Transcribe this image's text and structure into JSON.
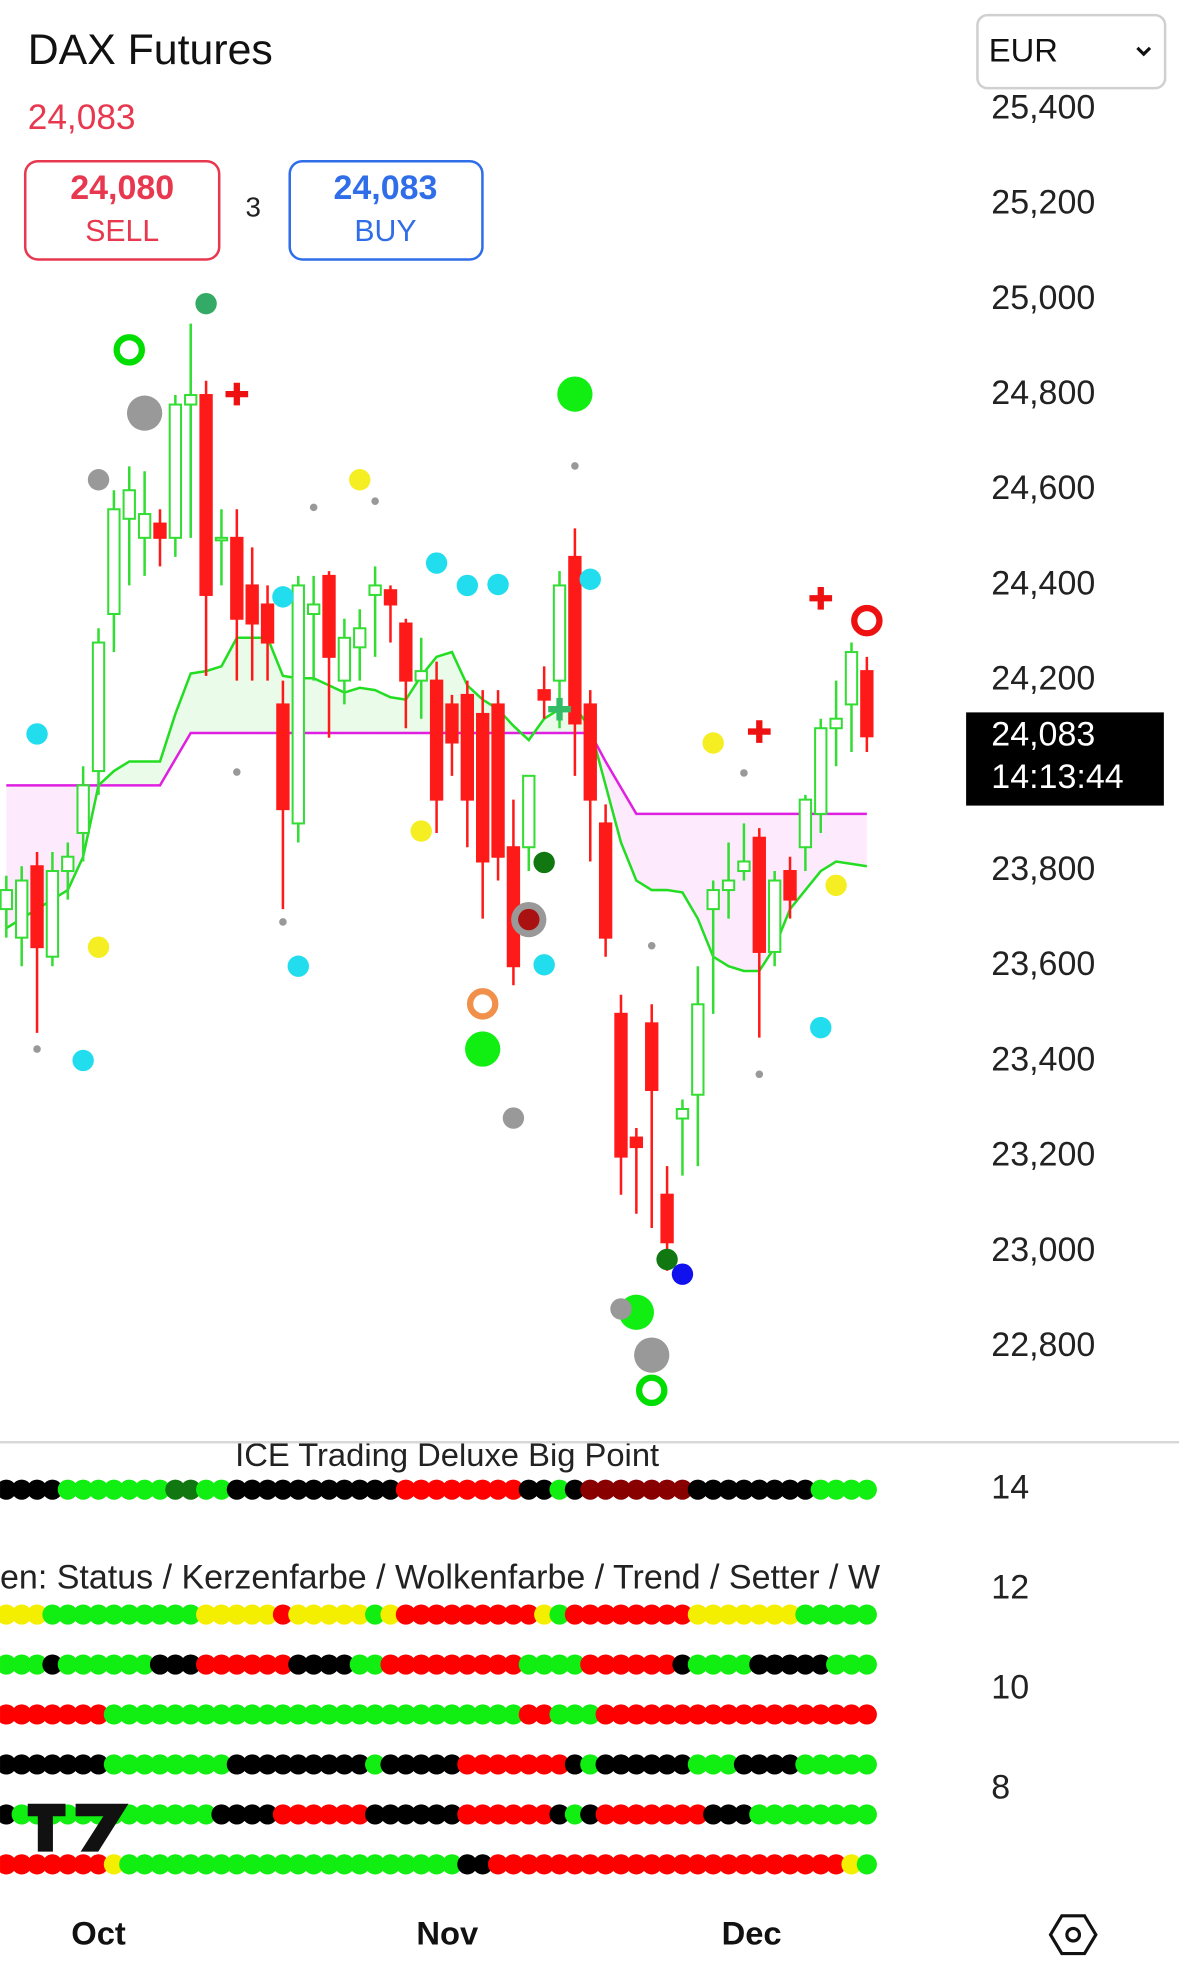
{
  "header": {
    "title": "DAX Futures",
    "price": "24,083",
    "sell_price": "24,080",
    "sell_label": "SELL",
    "spread": "3",
    "buy_price": "24,083",
    "buy_label": "BUY",
    "currency": "EUR"
  },
  "chart_data": [
    {
      "type": "candlestick",
      "up_color": "#33dd33",
      "down_color": "#ff1a1a",
      "ylim": [
        22600,
        25450
      ],
      "yticks": [
        {
          "value": 22800,
          "label": "22,800"
        },
        {
          "value": 23000,
          "label": "23,000"
        },
        {
          "value": 23200,
          "label": "23,200"
        },
        {
          "value": 23400,
          "label": "23,400"
        },
        {
          "value": 23600,
          "label": "23,600"
        },
        {
          "value": 23800,
          "label": "23,800"
        },
        {
          "value": 24000,
          "label": "24,000"
        },
        {
          "value": 24200,
          "label": "24,200"
        },
        {
          "value": 24400,
          "label": "24,400"
        },
        {
          "value": 24600,
          "label": "24,600"
        },
        {
          "value": 24800,
          "label": "24,800"
        },
        {
          "value": 25000,
          "label": "25,000"
        },
        {
          "value": 25200,
          "label": "25,200"
        },
        {
          "value": 25400,
          "label": "25,400"
        }
      ],
      "xticks": [
        {
          "value": 6,
          "label": "Oct"
        },
        {
          "value": 28.7,
          "label": "Nov"
        },
        {
          "value": 48.5,
          "label": "Dec"
        }
      ],
      "open": [
        23720,
        23660,
        23810,
        23620,
        23800,
        23880,
        24010,
        24340,
        24540,
        24500,
        24530,
        24500,
        24780,
        24800,
        24500,
        24500,
        24400,
        24360,
        24150,
        23900,
        24340,
        24420,
        24200,
        24270,
        24380,
        24390,
        24320,
        24200,
        24200,
        24150,
        24170,
        24130,
        24150,
        23850,
        23850,
        24180,
        24200,
        24460,
        24150,
        23900,
        23500,
        23240,
        23480,
        23120,
        23280,
        23330,
        23720,
        23760,
        23800,
        23870,
        23630,
        23800,
        23850,
        23920,
        24100,
        24150,
        24220
      ],
      "high": [
        23790,
        23810,
        23840,
        23840,
        23860,
        24020,
        24310,
        24600,
        24650,
        24640,
        24560,
        24800,
        24950,
        24830,
        24560,
        24560,
        24480,
        24400,
        24200,
        24420,
        24420,
        24430,
        24330,
        24350,
        24440,
        24400,
        24330,
        24290,
        24240,
        24170,
        24200,
        24180,
        24180,
        23950,
        24000,
        24230,
        24430,
        24520,
        24180,
        23940,
        23540,
        23260,
        23520,
        23180,
        23320,
        23600,
        23780,
        23860,
        23900,
        23890,
        23800,
        23830,
        23960,
        24120,
        24200,
        24280,
        24250
      ],
      "low": [
        23660,
        23600,
        23460,
        23600,
        23740,
        23820,
        23960,
        24260,
        24400,
        24420,
        24440,
        24460,
        24500,
        24210,
        24400,
        24200,
        24200,
        24200,
        23720,
        23860,
        24200,
        24080,
        24150,
        24200,
        24250,
        24280,
        24100,
        24120,
        23880,
        24000,
        23850,
        23700,
        23780,
        23560,
        23800,
        24120,
        24100,
        24000,
        23820,
        23620,
        23120,
        23080,
        23050,
        22960,
        23160,
        23180,
        23500,
        23700,
        23780,
        23450,
        23600,
        23700,
        23800,
        23880,
        24020,
        24050,
        24050
      ],
      "close": [
        23760,
        23780,
        23640,
        23800,
        23830,
        23980,
        24280,
        24560,
        24600,
        24550,
        24500,
        24780,
        24800,
        24380,
        24500,
        24330,
        24320,
        24280,
        23930,
        24400,
        24360,
        24250,
        24290,
        24310,
        24400,
        24360,
        24200,
        24220,
        23950,
        24070,
        23950,
        23820,
        23830,
        23600,
        24000,
        24160,
        24400,
        24110,
        23950,
        23660,
        23200,
        23220,
        23340,
        23020,
        23300,
        23520,
        23760,
        23780,
        23820,
        23630,
        23780,
        23740,
        23950,
        24100,
        24120,
        24260,
        24083
      ],
      "overlays": [
        {
          "color": "#e020e0",
          "fill": "#fdeafd",
          "values": [
            23980,
            23980,
            23980,
            23980,
            23980,
            23980,
            23980,
            23980,
            23980,
            23980,
            23980,
            24035,
            24090,
            24090,
            24090,
            24090,
            24090,
            24090,
            24090,
            24090,
            24090,
            24090,
            24090,
            24090,
            24090,
            24090,
            24090,
            24090,
            24090,
            24090,
            24090,
            24090,
            24090,
            24090,
            24090,
            24090,
            24090,
            24090,
            24090,
            24030,
            23975,
            23920,
            23920,
            23920,
            23920,
            23920,
            23920,
            23920,
            23920,
            23920,
            23920,
            23920,
            23920,
            23920,
            23920,
            23920,
            23920
          ]
        },
        {
          "color": "#22dd22",
          "fill": "#eafbea",
          "values": [
            23680,
            23700,
            23720,
            23740,
            23760,
            23830,
            23980,
            24010,
            24030,
            24030,
            24030,
            24130,
            24215,
            24220,
            24230,
            24290,
            24290,
            24290,
            24210,
            24205,
            24205,
            24190,
            24175,
            24185,
            24180,
            24165,
            24160,
            24210,
            24250,
            24260,
            24190,
            24160,
            24140,
            24105,
            24075,
            24120,
            24140,
            24145,
            24100,
            23980,
            23860,
            23780,
            23760,
            23760,
            23755,
            23700,
            23620,
            23600,
            23590,
            23590,
            23640,
            23720,
            23760,
            23800,
            23820,
            23815,
            23810
          ]
        }
      ],
      "last_price": {
        "value": 24083,
        "label": "24,083",
        "time": "14:13:44"
      },
      "markers": [
        {
          "index": 2,
          "value": 24088,
          "color": "#22ddee",
          "kind": "dot"
        },
        {
          "index": 2,
          "value": 23426,
          "color": "#999999",
          "kind": "small"
        },
        {
          "index": 5,
          "value": 23402,
          "color": "#22ddee",
          "kind": "dot"
        },
        {
          "index": 6,
          "value": 23640,
          "color": "#f4ee22",
          "kind": "dot"
        },
        {
          "index": 6,
          "value": 24622,
          "color": "#999999",
          "kind": "dot"
        },
        {
          "index": 8,
          "value": 24895,
          "color": "#00dd00",
          "kind": "ring"
        },
        {
          "index": 9,
          "value": 24762,
          "color": "#999999",
          "kind": "big"
        },
        {
          "index": 13,
          "value": 24992,
          "color": "#33aa66",
          "kind": "dot"
        },
        {
          "index": 15,
          "value": 24802,
          "color": "#ee1111",
          "kind": "cross"
        },
        {
          "index": 15,
          "value": 24008,
          "color": "#999999",
          "kind": "small"
        },
        {
          "index": 18,
          "value": 24376,
          "color": "#22ddee",
          "kind": "dot"
        },
        {
          "index": 18,
          "value": 23693,
          "color": "#999999",
          "kind": "small"
        },
        {
          "index": 19,
          "value": 23600,
          "color": "#22ddee",
          "kind": "dot"
        },
        {
          "index": 20,
          "value": 24564,
          "color": "#999999",
          "kind": "small"
        },
        {
          "index": 23,
          "value": 24622,
          "color": "#f4ee22",
          "kind": "dot"
        },
        {
          "index": 24,
          "value": 24577,
          "color": "#999999",
          "kind": "small"
        },
        {
          "index": 28,
          "value": 24447,
          "color": "#22ddee",
          "kind": "dot"
        },
        {
          "index": 27,
          "value": 23884,
          "color": "#f4ee22",
          "kind": "dot"
        },
        {
          "index": 30,
          "value": 24400,
          "color": "#22ddee",
          "kind": "dot"
        },
        {
          "index": 32,
          "value": 24402,
          "color": "#22ddee",
          "kind": "dot"
        },
        {
          "index": 31,
          "value": 23521,
          "color": "#f0904a",
          "kind": "ring"
        },
        {
          "index": 31,
          "value": 23426,
          "color": "#11ee11",
          "kind": "big"
        },
        {
          "index": 33,
          "value": 23281,
          "color": "#999999",
          "kind": "dot"
        },
        {
          "index": 34,
          "value": 23698,
          "color": "#999999",
          "kind": "big"
        },
        {
          "index": 34,
          "value": 23698,
          "color": "#aa1111",
          "kind": "dot"
        },
        {
          "index": 35,
          "value": 23818,
          "color": "#117711",
          "kind": "dot"
        },
        {
          "index": 35,
          "value": 23603,
          "color": "#22ddee",
          "kind": "dot"
        },
        {
          "index": 36,
          "value": 24140,
          "color": "#33bb66",
          "kind": "cross"
        },
        {
          "index": 37,
          "value": 24802,
          "color": "#11ee11",
          "kind": "big"
        },
        {
          "index": 37,
          "value": 24651,
          "color": "#999999",
          "kind": "small"
        },
        {
          "index": 38,
          "value": 24413,
          "color": "#22ddee",
          "kind": "dot"
        },
        {
          "index": 42,
          "value": 23643,
          "color": "#999999",
          "kind": "small"
        },
        {
          "index": 43,
          "value": 22984,
          "color": "#117711",
          "kind": "dot"
        },
        {
          "index": 44,
          "value": 22953,
          "color": "#1111ee",
          "kind": "dot"
        },
        {
          "index": 41,
          "value": 22873,
          "color": "#11ee11",
          "kind": "big"
        },
        {
          "index": 40,
          "value": 22880,
          "color": "#999999",
          "kind": "dot"
        },
        {
          "index": 42,
          "value": 22783,
          "color": "#999999",
          "kind": "big"
        },
        {
          "index": 42,
          "value": 22709,
          "color": "#00dd00",
          "kind": "ring"
        },
        {
          "index": 46,
          "value": 24069,
          "color": "#f4ee22",
          "kind": "dot"
        },
        {
          "index": 48,
          "value": 24006,
          "color": "#999999",
          "kind": "small"
        },
        {
          "index": 49,
          "value": 24093,
          "color": "#ee1111",
          "kind": "cross"
        },
        {
          "index": 49,
          "value": 23373,
          "color": "#999999",
          "kind": "small"
        },
        {
          "index": 53,
          "value": 24373,
          "color": "#ee1111",
          "kind": "cross"
        },
        {
          "index": 56,
          "value": 24326,
          "color": "#ee1111",
          "kind": "ring"
        },
        {
          "index": 54,
          "value": 23770,
          "color": "#f4ee22",
          "kind": "dot"
        },
        {
          "index": 53,
          "value": 23471,
          "color": "#22ddee",
          "kind": "dot"
        }
      ]
    },
    {
      "type": "dot-rows",
      "title": "ICE Trading Deluxe Big Point",
      "legend_text": "en: Status / Kerzenfarbe / Wolkenfarbe / Trend / Setter / W",
      "ylim": [
        6,
        15
      ],
      "yticks": [
        14,
        12,
        10,
        8
      ],
      "palette": {
        "K": "#000000",
        "G": "#11ee11",
        "Y": "#f4ee00",
        "R": "#ff0000",
        "D": "#880000",
        "E": "#117711"
      },
      "rows": [
        {
          "value": 14,
          "colors": "KKKKGGGGGGGEEGGKKKKKKKKKKKRRRRRRRRKKGKDDDDDDDKKKKKKKKGGGG"
        },
        {
          "value": 11.5,
          "colors": "YYYGGGGGGGGGGYYYYYRYYYYYGYRRRRRRRRRYGRRRRRRRRYYYYYYYGGGGG"
        },
        {
          "value": 10.5,
          "colors": "GGGKGGGGGGKKKRRRRRRKKKKGGRRRRRRRRRGGGGRRRRRRKGGGGKKKKKGGG"
        },
        {
          "value": 9.5,
          "colors": "RRRRRRRGGGGGGGGGGGGGGGGGGGGGGGGGGGRRGGGRRRRRRRRRRRRRRRRRR"
        },
        {
          "value": 8.5,
          "colors": "KKKKKKKGGGGGGGGKKKKKKKKKGKKKKKRRRRRRRKGKKKKKKGGGKKKKGGGGG"
        },
        {
          "value": 7.5,
          "colors": "KGGGGGGGGGGGGGKKKKRRRRRRKKKKKKRRRRRRKGKRRRRRRRKKKGGGGGGGG"
        },
        {
          "value": 6.5,
          "colors": "RRRRRRRYGGGGGGGGGGGGGGGGGGGGGGKKRRRRRRRRRRRRRRRRRRRRRRRYG"
        }
      ]
    }
  ]
}
